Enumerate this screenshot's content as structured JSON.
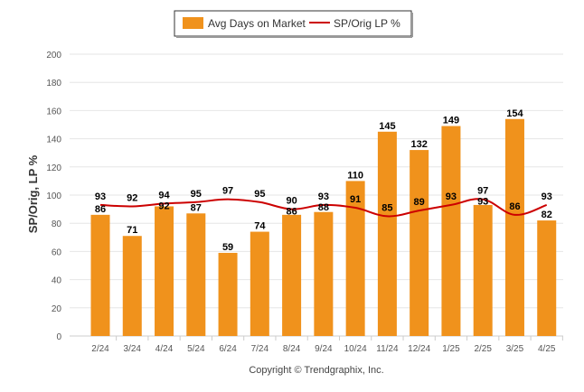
{
  "chart_data": {
    "type": "bar",
    "categories": [
      "2/24",
      "3/24",
      "4/24",
      "5/24",
      "6/24",
      "7/24",
      "8/24",
      "9/24",
      "10/24",
      "11/24",
      "12/24",
      "1/25",
      "2/25",
      "3/25",
      "4/25"
    ],
    "series": [
      {
        "name": "Avg Days on Market",
        "type": "bar",
        "color": "#f0921c",
        "values": [
          86,
          71,
          92,
          87,
          59,
          74,
          86,
          88,
          110,
          145,
          132,
          149,
          93,
          154,
          82
        ]
      },
      {
        "name": "SP/Orig LP %",
        "type": "line",
        "color": "#cc0000",
        "values": [
          93,
          92,
          94,
          95,
          97,
          95,
          90,
          93,
          91,
          85,
          89,
          93,
          97,
          86,
          93
        ]
      }
    ],
    "ylabel": "SP/Orig, LP %",
    "ylim": [
      0,
      200
    ],
    "yticks": [
      "0",
      "20",
      "40",
      "60",
      "80",
      "100",
      "120",
      "140",
      "160",
      "180",
      "200"
    ],
    "grid": true,
    "legend_position": "top-center"
  },
  "footer": {
    "credit": "Copyright © Trendgraphix, Inc."
  }
}
